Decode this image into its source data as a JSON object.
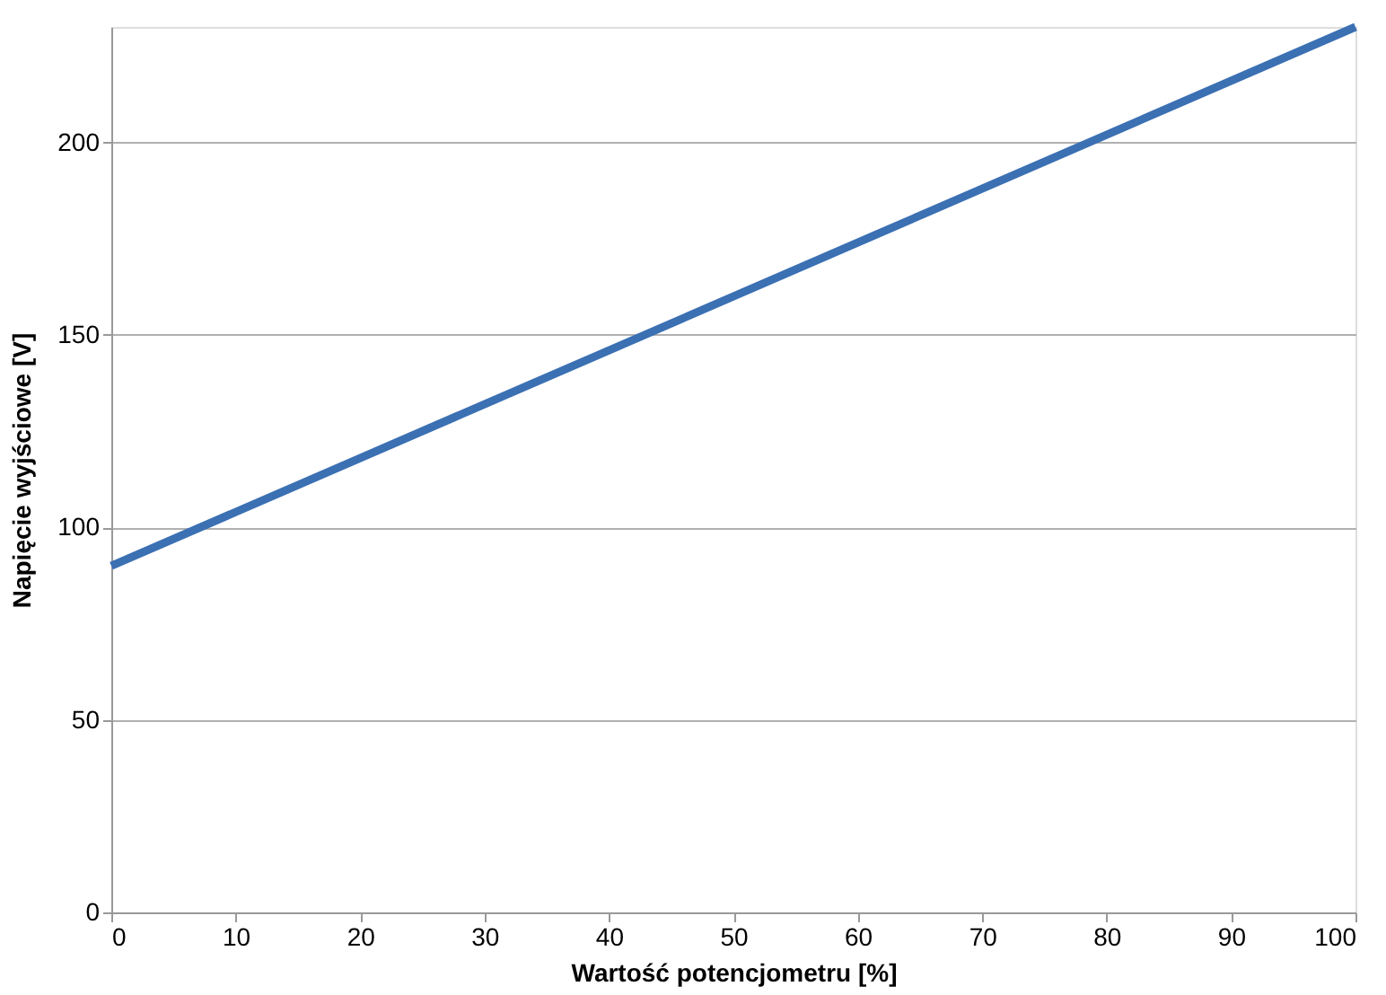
{
  "chart_data": {
    "type": "line",
    "xlabel": "Wartość potencjometru [%]",
    "ylabel": "Napięcie wyjściowe [V]",
    "x": [
      0,
      100
    ],
    "series": [
      {
        "color": "#3b70b3",
        "values": [
          90,
          230
        ]
      }
    ],
    "xlim": [
      0,
      100
    ],
    "xticks": [
      0,
      10,
      20,
      30,
      40,
      50,
      60,
      70,
      80,
      90,
      100
    ],
    "ylim": [
      0,
      230
    ],
    "yticks": [
      0,
      50,
      100,
      150,
      200
    ],
    "grid": "y",
    "marker": "none",
    "line_style": "solid"
  }
}
